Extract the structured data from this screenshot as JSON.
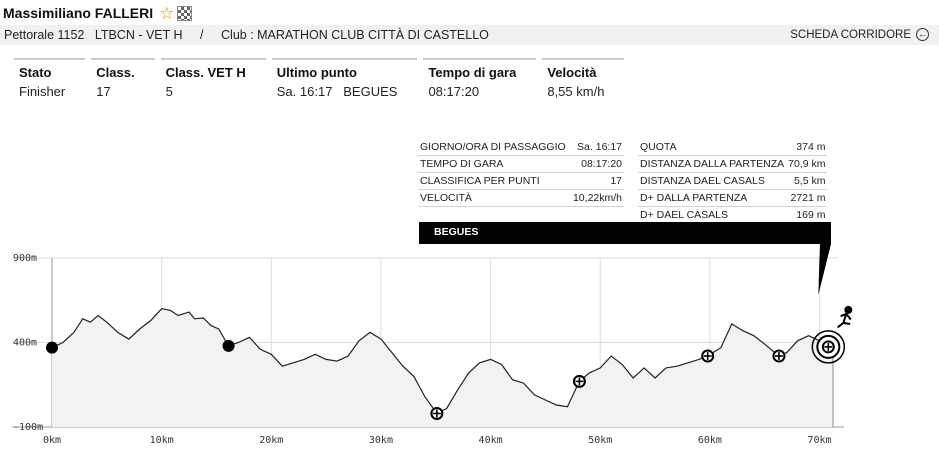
{
  "runner": {
    "name": "Massimiliano FALLERI",
    "bib": "Pettorale 1152",
    "category": "LTBCN - VET H",
    "separator": "/",
    "club": "Club : MARATHON CLUB CITTÀ DI CASTELLO",
    "scheda_label": "SCHEDA CORRIDORE",
    "scheda_icon": "←"
  },
  "status": [
    {
      "label": "Stato",
      "value": "Finisher"
    },
    {
      "label": "Class.",
      "value": "17"
    },
    {
      "label": "Class. VET H",
      "value": "5"
    },
    {
      "label": "Ultimo punto",
      "value": "Sa. 16:17   BEGUES"
    },
    {
      "label": "Tempo di gara",
      "value": "08:17:20"
    },
    {
      "label": "Velocità",
      "value": "8,55 km/h"
    }
  ],
  "passage": {
    "left": [
      {
        "label": "GIORNO/ORA DI PASSAGGIO",
        "value": "Sa. 16:17"
      },
      {
        "label": "TEMPO DI GARA",
        "value": "08:17:20"
      },
      {
        "label": "CLASSIFICA PER PUNTI",
        "value": "17"
      },
      {
        "label": "VELOCITÀ",
        "value": "10,22km/h"
      }
    ],
    "right": [
      {
        "label": "QUOTA",
        "value": "374 m"
      },
      {
        "label": "DISTANZA DALLA PARTENZA",
        "value": "70,9 km"
      },
      {
        "label": "DISTANZA DAEL CASALS",
        "value": "5,5 km"
      },
      {
        "label": "D+ DALLA PARTENZA",
        "value": "2721 m"
      },
      {
        "label": "D+ DAEL CASALS",
        "value": "169 m"
      }
    ],
    "checkpoint": "BEGUES"
  },
  "chart_data": {
    "type": "area",
    "title": "",
    "xlabel": "",
    "ylabel": "",
    "xlim": [
      0,
      71.5
    ],
    "ylim": [
      -100,
      900
    ],
    "x_ticks": [
      "0km",
      "10km",
      "20km",
      "30km",
      "40km",
      "50km",
      "60km",
      "70km"
    ],
    "x_tick_values": [
      0,
      10,
      20,
      30,
      40,
      50,
      60,
      70
    ],
    "y_ticks": [
      "900m",
      "400m",
      "-100m"
    ],
    "y_tick_values": [
      900,
      400,
      -100
    ],
    "grid": true,
    "colors": {
      "line": "#222222",
      "fill": "#f2f2f2",
      "grid": "#dddddd"
    },
    "profile": [
      [
        0,
        370
      ],
      [
        1,
        400
      ],
      [
        2,
        460
      ],
      [
        2.8,
        540
      ],
      [
        3.5,
        520
      ],
      [
        4.2,
        560
      ],
      [
        5,
        520
      ],
      [
        6,
        460
      ],
      [
        7,
        420
      ],
      [
        8,
        480
      ],
      [
        9,
        530
      ],
      [
        10,
        600
      ],
      [
        10.8,
        590
      ],
      [
        11.5,
        560
      ],
      [
        12.5,
        580
      ],
      [
        13,
        540
      ],
      [
        13.8,
        545
      ],
      [
        14.5,
        500
      ],
      [
        15.2,
        480
      ],
      [
        16.1,
        380
      ],
      [
        17,
        400
      ],
      [
        18,
        430
      ],
      [
        19,
        360
      ],
      [
        20,
        330
      ],
      [
        21,
        260
      ],
      [
        22,
        280
      ],
      [
        23,
        300
      ],
      [
        24,
        330
      ],
      [
        25,
        300
      ],
      [
        26,
        290
      ],
      [
        27,
        320
      ],
      [
        28,
        410
      ],
      [
        29,
        460
      ],
      [
        30,
        420
      ],
      [
        31,
        340
      ],
      [
        32,
        260
      ],
      [
        33,
        200
      ],
      [
        34,
        80
      ],
      [
        35.1,
        -20
      ],
      [
        36,
        10
      ],
      [
        37,
        120
      ],
      [
        38,
        220
      ],
      [
        39,
        280
      ],
      [
        40,
        300
      ],
      [
        41,
        270
      ],
      [
        42,
        180
      ],
      [
        43,
        160
      ],
      [
        44,
        90
      ],
      [
        45,
        60
      ],
      [
        46,
        30
      ],
      [
        47,
        20
      ],
      [
        48.1,
        170
      ],
      [
        49,
        220
      ],
      [
        50,
        250
      ],
      [
        51,
        320
      ],
      [
        52,
        270
      ],
      [
        53,
        190
      ],
      [
        54,
        250
      ],
      [
        55,
        190
      ],
      [
        56,
        250
      ],
      [
        57,
        260
      ],
      [
        58,
        280
      ],
      [
        59,
        300
      ],
      [
        59.8,
        320
      ],
      [
        61,
        370
      ],
      [
        62,
        510
      ],
      [
        63,
        470
      ],
      [
        64,
        440
      ],
      [
        65,
        390
      ],
      [
        66.3,
        320
      ],
      [
        67,
        340
      ],
      [
        68,
        410
      ],
      [
        69,
        440
      ],
      [
        70,
        410
      ],
      [
        70.8,
        374
      ],
      [
        71.2,
        374
      ]
    ],
    "markers": [
      {
        "km": 0,
        "alt": 370,
        "kind": "filled"
      },
      {
        "km": 16.1,
        "alt": 380,
        "kind": "filled"
      },
      {
        "km": 35.1,
        "alt": -20,
        "kind": "open"
      },
      {
        "km": 48.1,
        "alt": 170,
        "kind": "open"
      },
      {
        "km": 59.8,
        "alt": 320,
        "kind": "open"
      },
      {
        "km": 66.3,
        "alt": 320,
        "kind": "open"
      },
      {
        "km": 70.8,
        "alt": 374,
        "kind": "current"
      }
    ]
  }
}
